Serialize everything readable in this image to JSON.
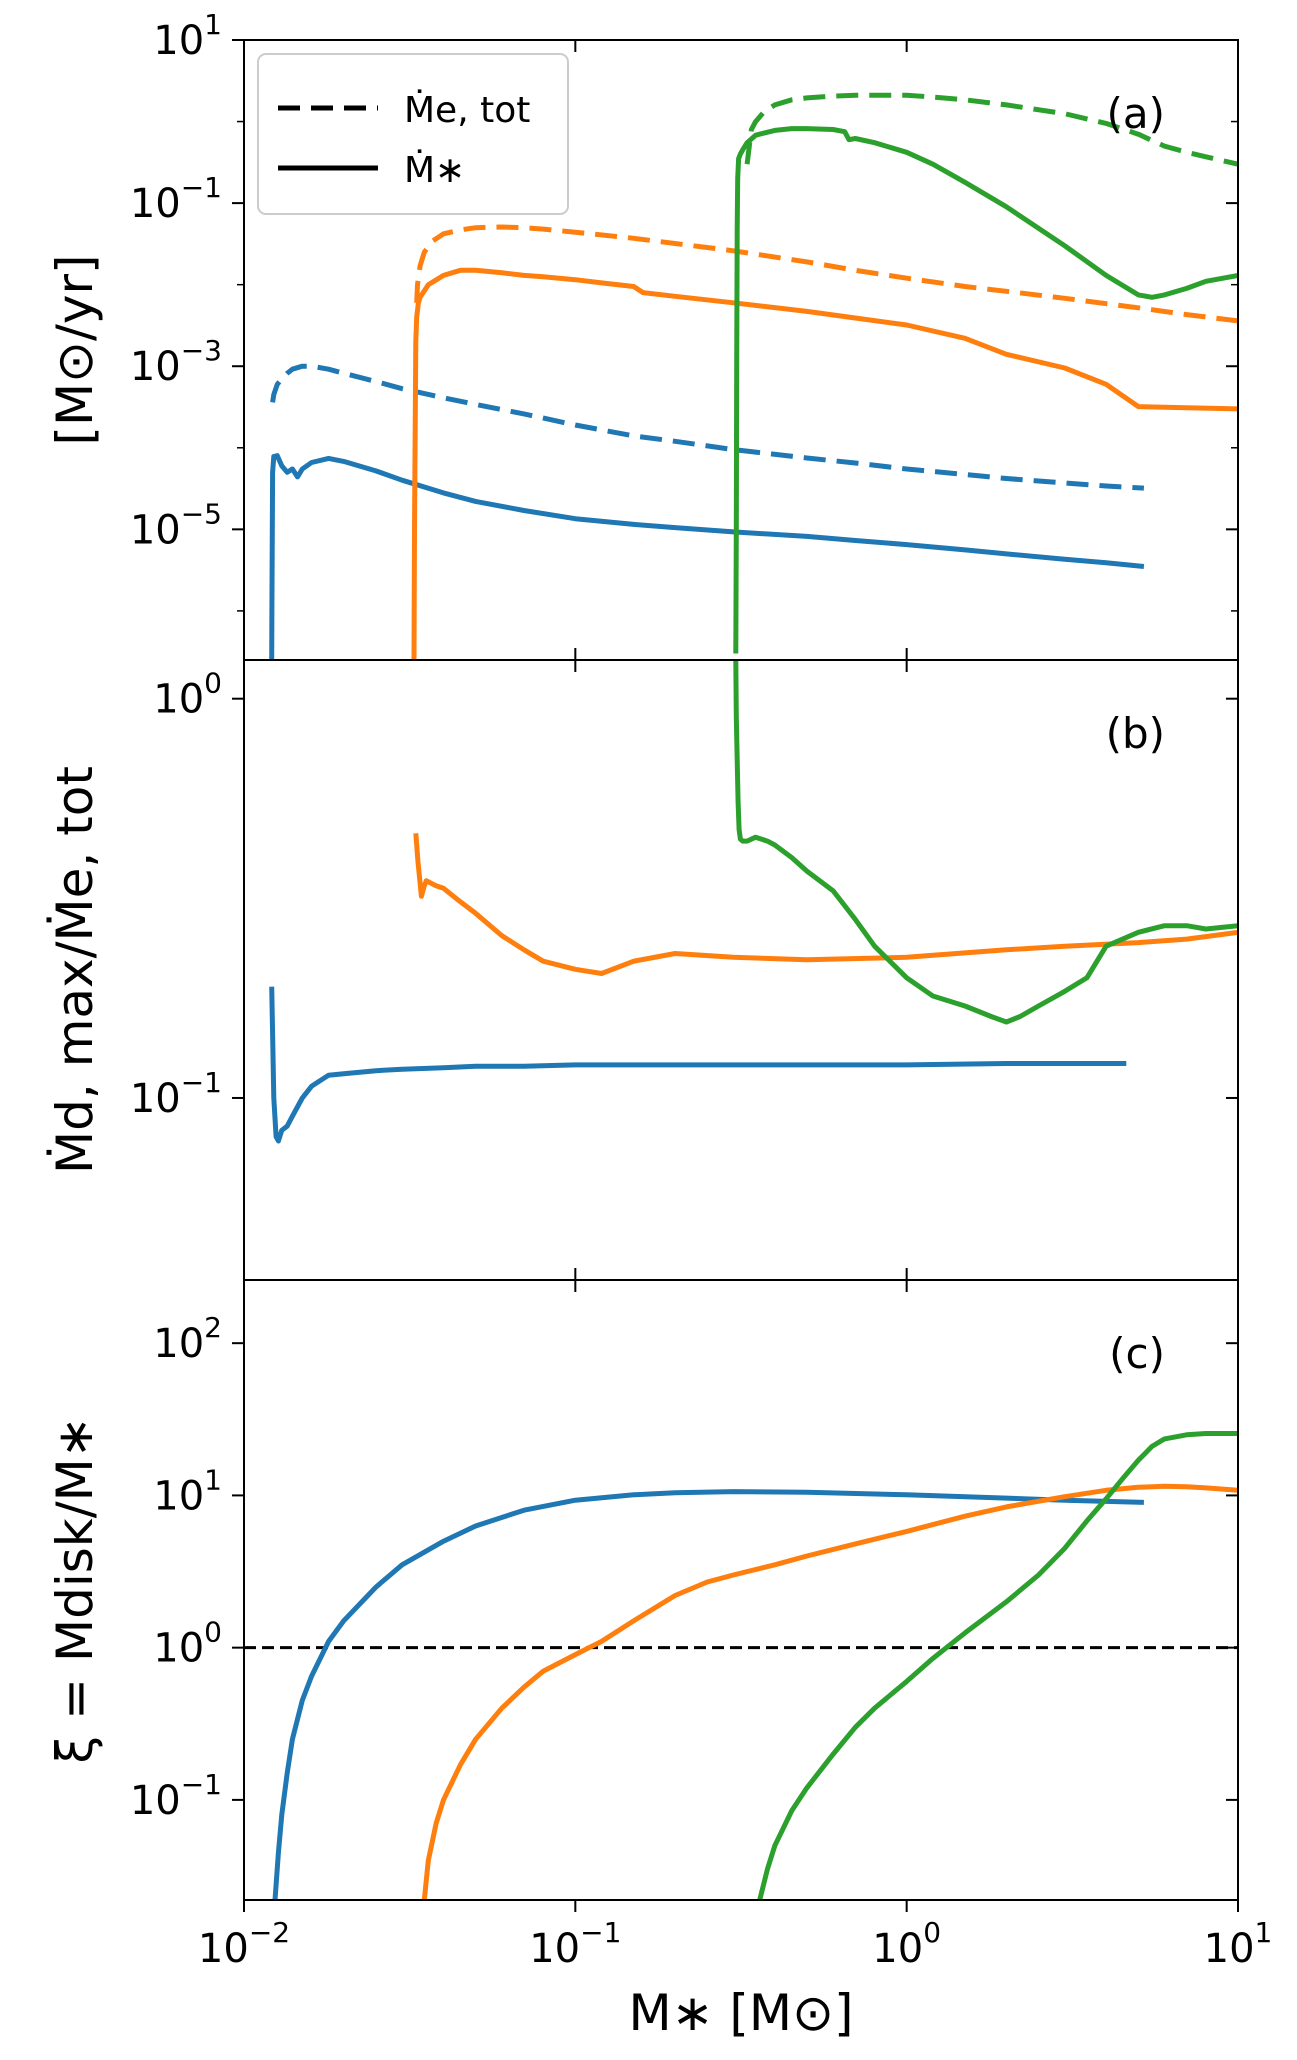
{
  "chart_data": [
    {
      "type": "line",
      "panel_label": "(a)",
      "ylabel": "[M⊙/yr]",
      "yscale": "log",
      "ylim": [
        2.5e-07,
        10
      ],
      "yticks": [
        {
          "v": 10,
          "m": "10",
          "e": "1"
        },
        {
          "v": 0.1,
          "m": "10",
          "e": "−1"
        },
        {
          "v": 0.001,
          "m": "10",
          "e": "−3"
        },
        {
          "v": 1e-05,
          "m": "10",
          "e": "−5"
        }
      ],
      "legend": {
        "position": "upper-left",
        "entries": [
          {
            "label": "Ṁe, tot",
            "style": "dashed"
          },
          {
            "label": "Ṁ∗",
            "style": "solid"
          }
        ]
      },
      "series": [
        {
          "color": "#1f77b4",
          "style": "dashed",
          "x": [
            0.0122,
            0.0123,
            0.0126,
            0.013,
            0.0135,
            0.014,
            0.015,
            0.016,
            0.018,
            0.02,
            0.025,
            0.03,
            0.04,
            0.05,
            0.07,
            0.1,
            0.15,
            0.2,
            0.3,
            0.5,
            0.7,
            1.0,
            1.5,
            2.0,
            3.0,
            4.0,
            5.2
          ],
          "y": [
            0.00036,
            0.00045,
            0.0006,
            0.0007,
            0.00082,
            0.00092,
            0.001,
            0.001,
            0.00092,
            0.00082,
            0.00065,
            0.00053,
            0.00041,
            0.00034,
            0.00026,
            0.00019,
            0.00014,
            0.00012,
            9.5e-05,
            7.5e-05,
            6.5e-05,
            5.5e-05,
            4.7e-05,
            4.2e-05,
            3.7e-05,
            3.4e-05,
            3.2e-05
          ]
        },
        {
          "color": "#1f77b4",
          "style": "solid",
          "x": [
            0.01212,
            0.01214,
            0.01217,
            0.0122,
            0.0123,
            0.0126,
            0.013,
            0.0135,
            0.014,
            0.0145,
            0.015,
            0.016,
            0.018,
            0.02,
            0.025,
            0.03,
            0.04,
            0.05,
            0.07,
            0.1,
            0.15,
            0.2,
            0.3,
            0.5,
            0.7,
            1.0,
            1.5,
            2.0,
            3.0,
            4.0,
            5.2
          ],
          "y": [
            2.5e-07,
            1e-06,
            1e-05,
            5e-05,
            7.8e-05,
            8e-05,
            6e-05,
            5e-05,
            5.5e-05,
            4.4e-05,
            5.5e-05,
            6.6e-05,
            7.4e-05,
            6.8e-05,
            5.2e-05,
            4e-05,
            2.8e-05,
            2.2e-05,
            1.7e-05,
            1.35e-05,
            1.15e-05,
            1.05e-05,
            9.3e-06,
            8.2e-06,
            7.3e-06,
            6.5e-06,
            5.6e-06,
            5e-06,
            4.3e-06,
            3.9e-06,
            3.5e-06
          ]
        },
        {
          "color": "#ff7f0e",
          "style": "dashed",
          "x": [
            0.0332,
            0.0334,
            0.034,
            0.035,
            0.037,
            0.04,
            0.045,
            0.05,
            0.06,
            0.07,
            0.08,
            0.1,
            0.15,
            0.2,
            0.3,
            0.5,
            0.7,
            1.0,
            1.5,
            2.0,
            3.0,
            5.0,
            7.0,
            10.0
          ],
          "y": [
            0.006,
            0.01,
            0.017,
            0.025,
            0.034,
            0.042,
            0.047,
            0.05,
            0.051,
            0.05,
            0.048,
            0.044,
            0.037,
            0.032,
            0.026,
            0.019,
            0.015,
            0.012,
            0.0095,
            0.0083,
            0.0068,
            0.0052,
            0.0043,
            0.0036
          ]
        },
        {
          "color": "#ff7f0e",
          "style": "solid",
          "x": [
            0.0326,
            0.0327,
            0.0329,
            0.033,
            0.0332,
            0.0336,
            0.034,
            0.036,
            0.04,
            0.045,
            0.05,
            0.06,
            0.07,
            0.08,
            0.1,
            0.12,
            0.15,
            0.16,
            0.2,
            0.3,
            0.5,
            0.7,
            1.0,
            1.5,
            2.0,
            3.0,
            4.0,
            5.0,
            7.0,
            10.0
          ],
          "y": [
            2.5e-07,
            1e-05,
            0.0004,
            0.002,
            0.004,
            0.006,
            0.007,
            0.01,
            0.013,
            0.015,
            0.015,
            0.014,
            0.013,
            0.0125,
            0.0115,
            0.0105,
            0.0095,
            0.008,
            0.0072,
            0.006,
            0.0047,
            0.0039,
            0.0032,
            0.0022,
            0.0014,
            0.00095,
            0.0006,
            0.00032,
            0.00031,
            0.0003
          ]
        },
        {
          "color": "#2ca02c",
          "style": "dashed",
          "x": [
            0.33,
            0.335,
            0.34,
            0.35,
            0.37,
            0.4,
            0.45,
            0.5,
            0.6,
            0.7,
            0.8,
            1.0,
            1.2,
            1.5,
            2.0,
            3.0,
            4.0,
            5.0,
            6.0,
            7.0,
            8.0,
            10.0
          ],
          "y": [
            0.3,
            0.5,
            0.8,
            1.0,
            1.3,
            1.6,
            1.85,
            1.95,
            2.05,
            2.1,
            2.1,
            2.1,
            2.0,
            1.85,
            1.6,
            1.25,
            0.95,
            0.7,
            0.5,
            0.42,
            0.37,
            0.3
          ]
        },
        {
          "color": "#2ca02c",
          "style": "solid",
          "x": [
            0.305,
            0.306,
            0.307,
            0.308,
            0.309,
            0.311,
            0.315,
            0.32,
            0.33,
            0.35,
            0.4,
            0.45,
            0.5,
            0.6,
            0.65,
            0.67,
            0.7,
            0.8,
            1.0,
            1.2,
            1.5,
            2.0,
            3.0,
            4.0,
            5.0,
            5.5,
            6.0,
            7.0,
            8.0,
            10.0
          ],
          "y": [
            3e-07,
            1e-05,
            0.001,
            0.05,
            0.2,
            0.35,
            0.4,
            0.45,
            0.55,
            0.68,
            0.78,
            0.82,
            0.82,
            0.8,
            0.75,
            0.6,
            0.62,
            0.55,
            0.42,
            0.3,
            0.18,
            0.09,
            0.03,
            0.013,
            0.0075,
            0.007,
            0.0075,
            0.009,
            0.011,
            0.013
          ]
        }
      ]
    },
    {
      "type": "line",
      "panel_label": "(b)",
      "ylabel": "Ṁd, max/Ṁe, tot",
      "yscale": "log",
      "ylim": [
        0.035,
        1.25
      ],
      "yticks": [
        {
          "v": 1.0,
          "m": "10",
          "e": "0"
        },
        {
          "v": 0.1,
          "m": "10",
          "e": "−1"
        }
      ],
      "series": [
        {
          "color": "#1f77b4",
          "style": "solid",
          "x": [
            0.01212,
            0.0122,
            0.0123,
            0.0125,
            0.0127,
            0.013,
            0.0135,
            0.014,
            0.015,
            0.016,
            0.018,
            0.02,
            0.025,
            0.03,
            0.04,
            0.05,
            0.07,
            0.1,
            0.2,
            0.5,
            1.0,
            2.0,
            4.6
          ],
          "y": [
            0.19,
            0.145,
            0.1,
            0.08,
            0.078,
            0.083,
            0.085,
            0.09,
            0.1,
            0.107,
            0.114,
            0.115,
            0.117,
            0.118,
            0.119,
            0.12,
            0.12,
            0.121,
            0.121,
            0.121,
            0.121,
            0.122,
            0.122
          ]
        },
        {
          "color": "#ff7f0e",
          "style": "solid",
          "x": [
            0.033,
            0.0335,
            0.0343,
            0.035,
            0.0355,
            0.038,
            0.04,
            0.045,
            0.05,
            0.06,
            0.07,
            0.08,
            0.1,
            0.12,
            0.15,
            0.2,
            0.3,
            0.5,
            1.0,
            2.0,
            3.0,
            5.0,
            7.0,
            10.0
          ],
          "y": [
            0.46,
            0.39,
            0.32,
            0.34,
            0.35,
            0.34,
            0.335,
            0.31,
            0.29,
            0.255,
            0.235,
            0.22,
            0.21,
            0.205,
            0.22,
            0.23,
            0.225,
            0.222,
            0.225,
            0.235,
            0.24,
            0.245,
            0.25,
            0.26
          ]
        },
        {
          "color": "#2ca02c",
          "style": "solid",
          "x": [
            0.305,
            0.306,
            0.308,
            0.31,
            0.312,
            0.315,
            0.32,
            0.33,
            0.35,
            0.38,
            0.4,
            0.45,
            0.5,
            0.6,
            0.7,
            0.8,
            1.0,
            1.2,
            1.5,
            1.8,
            2.0,
            2.2,
            2.5,
            3.0,
            3.5,
            4.0,
            5.0,
            6.0,
            7.0,
            8.0,
            10.0
          ],
          "y": [
            1.25,
            0.9,
            0.7,
            0.55,
            0.47,
            0.445,
            0.44,
            0.44,
            0.45,
            0.44,
            0.43,
            0.4,
            0.37,
            0.33,
            0.28,
            0.24,
            0.2,
            0.18,
            0.17,
            0.16,
            0.155,
            0.16,
            0.17,
            0.185,
            0.2,
            0.24,
            0.26,
            0.27,
            0.27,
            0.265,
            0.27
          ]
        }
      ]
    },
    {
      "type": "line",
      "panel_label": "(c)",
      "ylabel": "ξ = Mdisk/M∗",
      "xlabel": "M∗ [M⊙]",
      "xscale": "log",
      "xlim": [
        0.01,
        10
      ],
      "xticks": [
        {
          "v": 0.01,
          "m": "10",
          "e": "−2"
        },
        {
          "v": 0.1,
          "m": "10",
          "e": "−1"
        },
        {
          "v": 1,
          "m": "10",
          "e": "0"
        },
        {
          "v": 10,
          "m": "10",
          "e": "1"
        }
      ],
      "yscale": "log",
      "ylim": [
        0.022,
        260
      ],
      "yticks": [
        {
          "v": 100,
          "m": "10",
          "e": "2"
        },
        {
          "v": 10,
          "m": "10",
          "e": "1"
        },
        {
          "v": 1,
          "m": "10",
          "e": "0"
        },
        {
          "v": 0.1,
          "m": "10",
          "e": "−1"
        }
      ],
      "reference_line": {
        "y": 1.0,
        "style": "dashed",
        "color": "#000000"
      },
      "series": [
        {
          "color": "#1f77b4",
          "style": "solid",
          "x": [
            0.0124,
            0.0127,
            0.013,
            0.0135,
            0.014,
            0.015,
            0.016,
            0.018,
            0.02,
            0.025,
            0.03,
            0.04,
            0.05,
            0.07,
            0.1,
            0.15,
            0.2,
            0.3,
            0.5,
            1.0,
            2.0,
            3.0,
            5.2
          ],
          "y": [
            0.022,
            0.045,
            0.08,
            0.15,
            0.25,
            0.45,
            0.65,
            1.1,
            1.5,
            2.5,
            3.5,
            5.0,
            6.3,
            8.0,
            9.3,
            10.1,
            10.4,
            10.6,
            10.5,
            10.1,
            9.6,
            9.3,
            9.0
          ]
        },
        {
          "color": "#ff7f0e",
          "style": "solid",
          "x": [
            0.035,
            0.036,
            0.038,
            0.04,
            0.045,
            0.05,
            0.06,
            0.07,
            0.08,
            0.1,
            0.12,
            0.15,
            0.2,
            0.25,
            0.3,
            0.4,
            0.5,
            0.7,
            1.0,
            1.5,
            2.0,
            3.0,
            4.0,
            5.0,
            6.0,
            7.0,
            8.0,
            10.0
          ],
          "y": [
            0.022,
            0.04,
            0.07,
            0.1,
            0.17,
            0.25,
            0.4,
            0.55,
            0.7,
            0.9,
            1.1,
            1.5,
            2.2,
            2.7,
            3.0,
            3.5,
            4.0,
            4.8,
            5.8,
            7.3,
            8.4,
            9.8,
            10.8,
            11.3,
            11.5,
            11.4,
            11.2,
            10.8
          ]
        },
        {
          "color": "#2ca02c",
          "style": "solid",
          "x": [
            0.36,
            0.38,
            0.4,
            0.45,
            0.5,
            0.6,
            0.7,
            0.8,
            1.0,
            1.2,
            1.5,
            2.0,
            2.5,
            3.0,
            3.5,
            4.0,
            4.5,
            5.0,
            5.5,
            6.0,
            7.0,
            8.0,
            10.0
          ],
          "y": [
            0.022,
            0.035,
            0.05,
            0.085,
            0.12,
            0.2,
            0.3,
            0.4,
            0.6,
            0.85,
            1.25,
            2.0,
            3.0,
            4.5,
            6.8,
            9.5,
            13.0,
            17.0,
            21.0,
            23.5,
            25.0,
            25.5,
            25.5
          ]
        }
      ]
    }
  ]
}
